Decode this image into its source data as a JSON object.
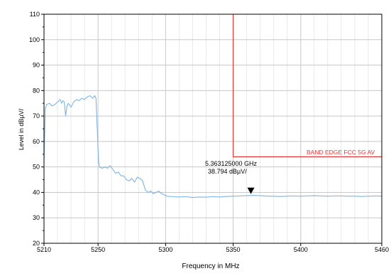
{
  "chart_data": {
    "type": "line",
    "xlabel": "Frequency in MHz",
    "ylabel": "Level in dBµV/",
    "xlim": [
      5210,
      5460
    ],
    "ylim": [
      20,
      110
    ],
    "x_ticks": [
      "5210",
      "5250",
      "5300",
      "5350",
      "5400",
      "5460"
    ],
    "x_tick_values": [
      5210,
      5250,
      5300,
      5350,
      5400,
      5460
    ],
    "y_ticks": [
      "20",
      "30",
      "40",
      "50",
      "60",
      "70",
      "80",
      "90",
      "100",
      "110"
    ],
    "y_tick_values": [
      20,
      30,
      40,
      50,
      60,
      70,
      80,
      90,
      100,
      110
    ],
    "grid": true,
    "colors": {
      "trace": "#7ab4e6",
      "limit": "#e03a3a",
      "grid": "#c8c8c8",
      "axis": "#000000"
    },
    "series": [
      {
        "values": [
          [
            5210.0,
            52
          ],
          [
            5211.0,
            73
          ],
          [
            5212.0,
            74.5
          ],
          [
            5214.0,
            75
          ],
          [
            5216.0,
            74
          ],
          [
            5218.0,
            74.5
          ],
          [
            5220.0,
            75.5
          ],
          [
            5222.0,
            76.5
          ],
          [
            5223.0,
            75
          ],
          [
            5224.0,
            76
          ],
          [
            5225.0,
            75.5
          ],
          [
            5226.0,
            70
          ],
          [
            5227.0,
            74
          ],
          [
            5228.0,
            75
          ],
          [
            5230.0,
            73.5
          ],
          [
            5232.0,
            75.5
          ],
          [
            5234.0,
            76.5
          ],
          [
            5236.0,
            76
          ],
          [
            5238.0,
            77
          ],
          [
            5240.0,
            76.5
          ],
          [
            5242.0,
            77.5
          ],
          [
            5244.0,
            78
          ],
          [
            5246.0,
            77
          ],
          [
            5247.5,
            78
          ],
          [
            5248.5,
            77
          ],
          [
            5249.0,
            70
          ],
          [
            5250.0,
            57
          ],
          [
            5250.5,
            52
          ],
          [
            5251.0,
            50
          ],
          [
            5253.0,
            49.5
          ],
          [
            5255.0,
            50
          ],
          [
            5257.0,
            49.5
          ],
          [
            5259.0,
            50.5
          ],
          [
            5261.0,
            49
          ],
          [
            5263.0,
            47.5
          ],
          [
            5265.0,
            48
          ],
          [
            5267.0,
            46.5
          ],
          [
            5269.0,
            46.5
          ],
          [
            5271.0,
            45
          ],
          [
            5273.0,
            44.5
          ],
          [
            5275.0,
            45.5
          ],
          [
            5277.0,
            44
          ],
          [
            5279.0,
            46
          ],
          [
            5281.0,
            45.5
          ],
          [
            5283.0,
            44.5
          ],
          [
            5285.0,
            41
          ],
          [
            5287.0,
            40
          ],
          [
            5289.0,
            40.5
          ],
          [
            5291.0,
            39.5
          ],
          [
            5293.0,
            40
          ],
          [
            5295.0,
            40.5
          ],
          [
            5297.0,
            39.5
          ],
          [
            5299.0,
            39
          ],
          [
            5301.0,
            38.5
          ],
          [
            5305.0,
            38.3
          ],
          [
            5310.0,
            38.2
          ],
          [
            5315.0,
            38.3
          ],
          [
            5320.0,
            38.0
          ],
          [
            5325.0,
            38.2
          ],
          [
            5330.0,
            38.1
          ],
          [
            5335.0,
            38.3
          ],
          [
            5340.0,
            38.2
          ],
          [
            5345.0,
            38.4
          ],
          [
            5350.0,
            38.5
          ],
          [
            5355.0,
            38.6
          ],
          [
            5360.0,
            38.7
          ],
          [
            5363.1,
            38.794
          ],
          [
            5366.0,
            38.8
          ],
          [
            5370.0,
            38.7
          ],
          [
            5375.0,
            38.5
          ],
          [
            5380.0,
            38.5
          ],
          [
            5385.0,
            38.4
          ],
          [
            5390.0,
            38.5
          ],
          [
            5395.0,
            38.6
          ],
          [
            5400.0,
            38.5
          ],
          [
            5405.0,
            38.6
          ],
          [
            5410.0,
            38.7
          ],
          [
            5415.0,
            38.6
          ],
          [
            5420.0,
            38.5
          ],
          [
            5425.0,
            38.6
          ],
          [
            5430.0,
            38.6
          ],
          [
            5435.0,
            38.5
          ],
          [
            5440.0,
            38.5
          ],
          [
            5445.0,
            38.4
          ],
          [
            5450.0,
            38.5
          ],
          [
            5455.0,
            38.6
          ],
          [
            5460.0,
            38.5
          ]
        ]
      }
    ],
    "limit_line": {
      "label": "BAND EDGE  FCC 5G AV",
      "x_start": 5350,
      "x_end": 5460,
      "level": 54,
      "top": 110
    },
    "marker": {
      "x": 5363.125,
      "y": 38.794,
      "label_freq": "5.363125000 GHz",
      "label_level": "38.794 dBµV/"
    }
  }
}
